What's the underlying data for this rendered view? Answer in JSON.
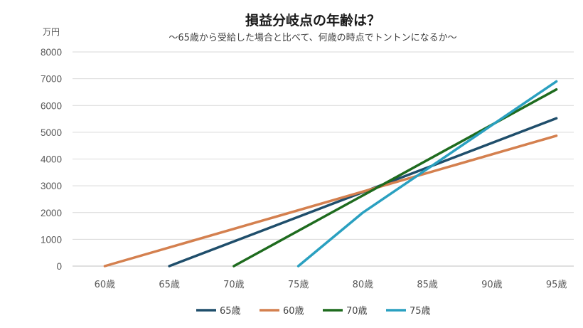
{
  "chart_data": {
    "type": "line",
    "title": "損益分岐点の年齢は？",
    "subtitle": "〜65歳から受給した場合と比べて、何歳の時点でトントンになるか〜",
    "ylabel": "万円",
    "xlabel": "",
    "x_ticks": [
      60,
      65,
      70,
      75,
      80,
      85,
      90,
      95
    ],
    "x_tick_labels": [
      "60歳",
      "65歳",
      "70歳",
      "75歳",
      "80歳",
      "85歳",
      "90歳",
      "95歳"
    ],
    "y_ticks": [
      0,
      1000,
      2000,
      3000,
      4000,
      5000,
      6000,
      7000,
      8000
    ],
    "ylim": [
      0,
      8000
    ],
    "xlim": [
      57.5,
      97.5
    ],
    "grid": true,
    "legend_position": "bottom",
    "series": [
      {
        "name": "65歳",
        "color": "#1f4e6b",
        "points": [
          [
            65,
            0
          ],
          [
            95,
            5520
          ]
        ]
      },
      {
        "name": "60歳",
        "color": "#d4804f",
        "points": [
          [
            60,
            0
          ],
          [
            95,
            4870
          ]
        ]
      },
      {
        "name": "70歳",
        "color": "#1e6b1e",
        "points": [
          [
            70,
            0
          ],
          [
            95,
            6600
          ]
        ]
      },
      {
        "name": "75歳",
        "color": "#2aa0c0",
        "points": [
          [
            75,
            0
          ],
          [
            80,
            2000
          ],
          [
            95,
            6900
          ]
        ]
      }
    ]
  }
}
